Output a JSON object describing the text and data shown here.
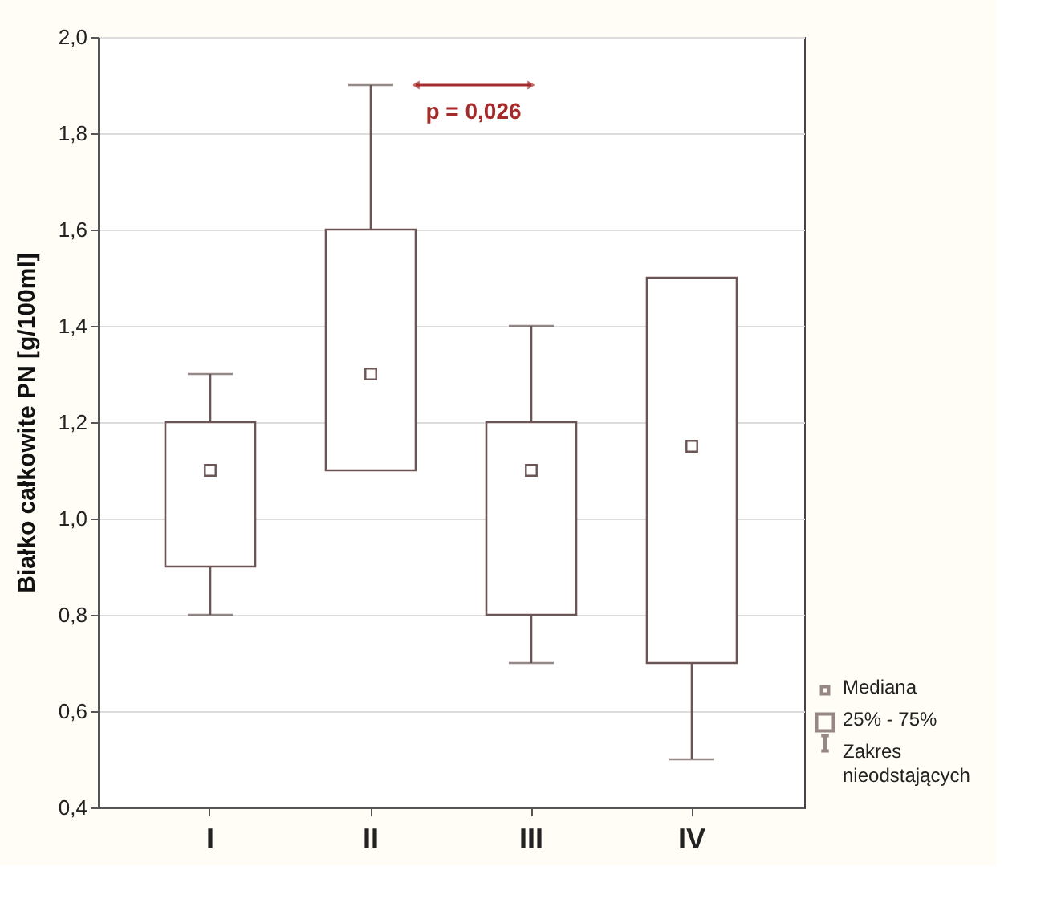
{
  "chart_data": {
    "type": "box",
    "ylabel": "Białko całkowite PN [g/100ml]",
    "categories": [
      "I",
      "II",
      "III",
      "IV"
    ],
    "boxes": [
      {
        "low": 0.8,
        "q1": 0.9,
        "median": 1.1,
        "q3": 1.2,
        "high": 1.3
      },
      {
        "low": 1.1,
        "q1": 1.1,
        "median": 1.3,
        "q3": 1.6,
        "high": 1.9
      },
      {
        "low": 0.7,
        "q1": 0.8,
        "median": 1.1,
        "q3": 1.2,
        "high": 1.4
      },
      {
        "low": 0.5,
        "q1": 0.7,
        "median": 1.15,
        "q3": 1.5,
        "high": 1.5
      }
    ],
    "ylim": [
      0.4,
      2.0
    ],
    "yticks": [
      {
        "value": 0.4,
        "label": "0,4"
      },
      {
        "value": 0.6,
        "label": "0,6"
      },
      {
        "value": 0.8,
        "label": "0,8"
      },
      {
        "value": 1.0,
        "label": "1,0"
      },
      {
        "value": 1.2,
        "label": "1,2"
      },
      {
        "value": 1.4,
        "label": "1,4"
      },
      {
        "value": 1.6,
        "label": "1,6"
      },
      {
        "value": 1.8,
        "label": "1,8"
      },
      {
        "value": 2.0,
        "label": "2,0"
      }
    ],
    "grid": "y",
    "marker": "square",
    "annotations": [
      "p = 0,026",
      "Mediana",
      "25% - 75%",
      "Zakres nieodstających"
    ]
  }
}
